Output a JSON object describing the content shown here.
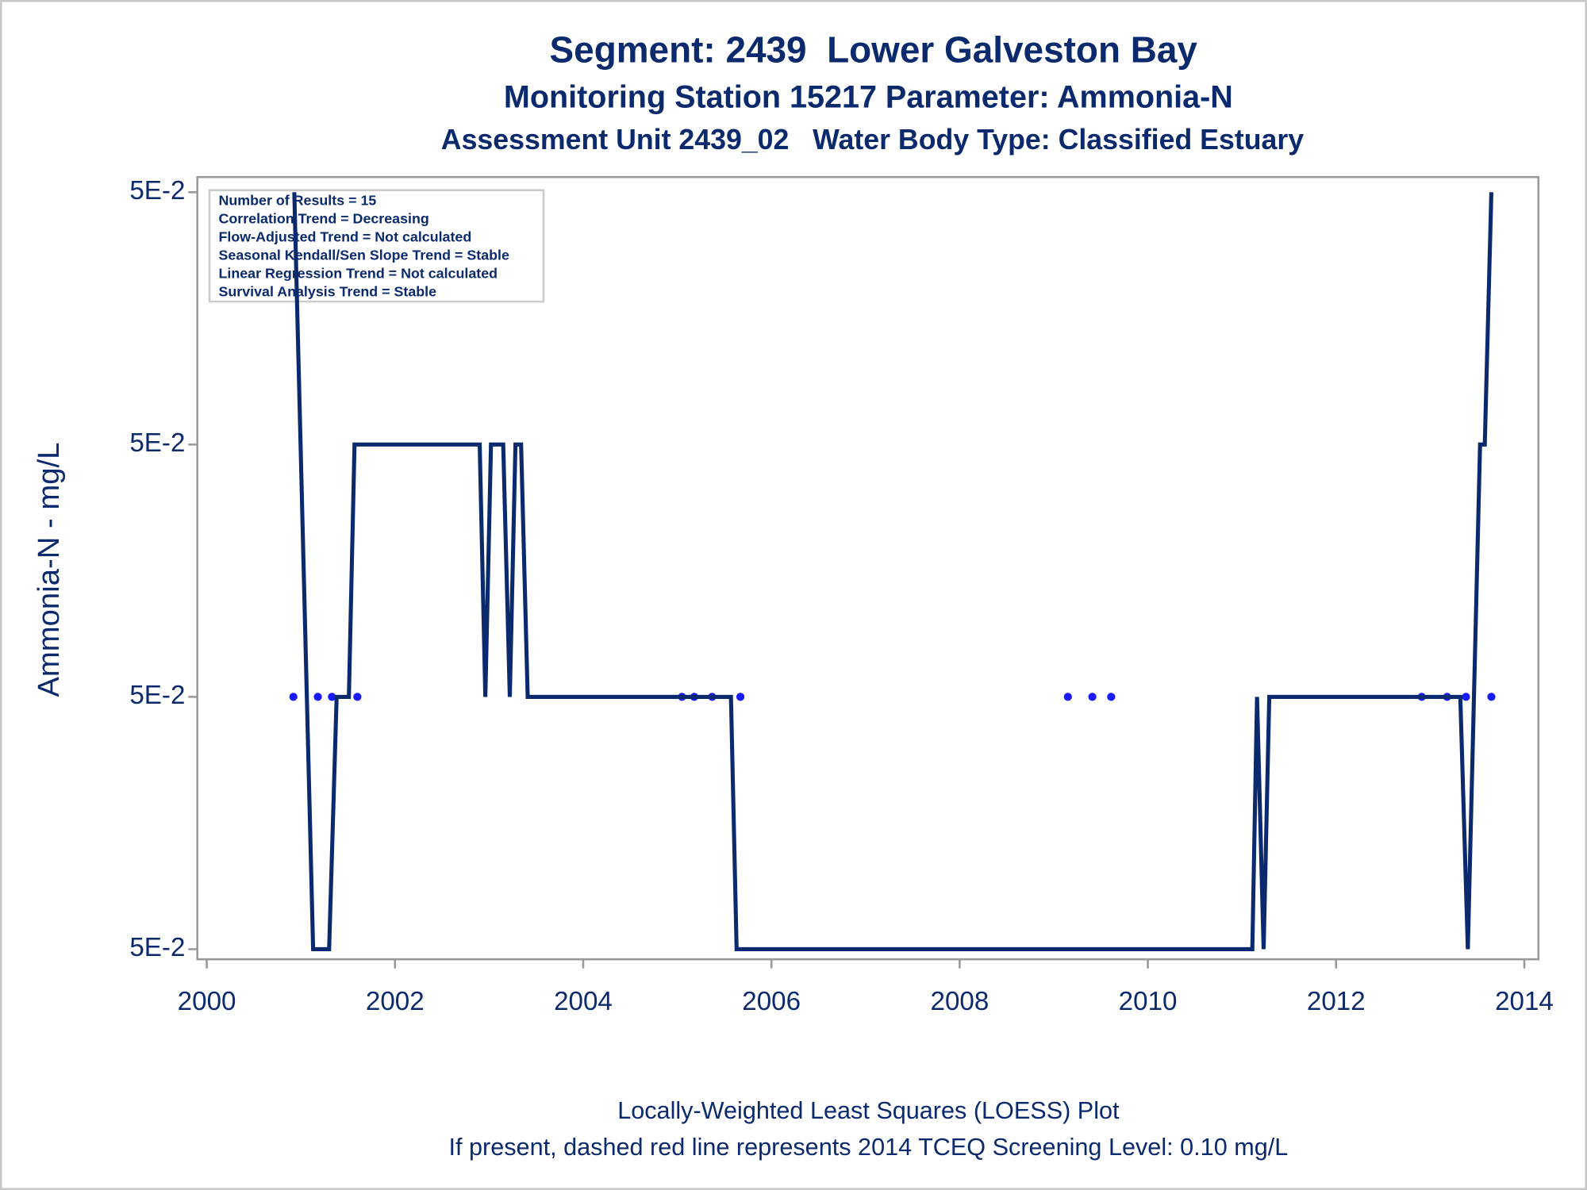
{
  "chart_data": {
    "type": "scatter",
    "title": "Segment: 2439  Lower Galveston Bay",
    "subtitle": [
      "Monitoring Station 15217 Parameter: Ammonia-N",
      "Assessment Unit 2439_02   Water Body Type: Classified Estuary"
    ],
    "ylabel": "Ammonia-N - mg/L",
    "annotations": [
      "Number of Results = 15",
      "Correlation Trend = Decreasing",
      "Flow-Adjusted Trend = Not calculated",
      "Seasonal Kendall/Sen Slope Trend = Stable",
      "Linear Regression Trend = Not calculated",
      "Survival Analysis Trend = Stable"
    ],
    "notes": [
      "Locally-Weighted Least Squares (LOESS) Plot",
      "If present, dashed red line represents 2014 TCEQ Screening Level: 0.10 mg/L"
    ],
    "xlim": [
      1999.9,
      2014.15
    ],
    "xticks": [
      2000,
      2002,
      2004,
      2006,
      2008,
      2010,
      2012,
      2014
    ],
    "ylim": [
      0.0499896,
      0.0500206
    ],
    "yticks": [
      {
        "value": 0.04999,
        "label": "5E-2"
      },
      {
        "value": 0.05,
        "label": "5E-2"
      },
      {
        "value": 0.05001,
        "label": "5E-2"
      },
      {
        "value": 0.05002,
        "label": "5E-2"
      }
    ],
    "series": [
      {
        "type": "scatter",
        "color": "#1a1aff",
        "x": [
          2000.92,
          2001.18,
          2001.33,
          2001.6,
          2005.05,
          2005.18,
          2005.37,
          2005.67,
          2009.15,
          2009.41,
          2009.61,
          2012.91,
          2013.18,
          2013.38,
          2013.65
        ],
        "values": [
          0.05,
          0.05,
          0.05,
          0.05,
          0.05,
          0.05,
          0.05,
          0.05,
          0.05,
          0.05,
          0.05,
          0.05,
          0.05,
          0.05,
          0.05
        ]
      },
      {
        "type": "line",
        "color": "#0b2a6e",
        "x": [
          2000.93,
          2001.13,
          2001.3,
          2001.38,
          2001.51,
          2001.57,
          2002.9,
          2002.96,
          2003.02,
          2003.15,
          2003.22,
          2003.28,
          2003.34,
          2003.41,
          2005.57,
          2005.63,
          2011.11,
          2011.16,
          2011.23,
          2011.29,
          2013.32,
          2013.4,
          2013.53,
          2013.58,
          2013.65
        ],
        "values": [
          0.05002,
          0.04999,
          0.04999,
          0.05,
          0.05,
          0.05001,
          0.05001,
          0.05,
          0.05001,
          0.05001,
          0.05,
          0.05001,
          0.05001,
          0.05,
          0.05,
          0.04999,
          0.04999,
          0.05,
          0.04999,
          0.05,
          0.05,
          0.04999,
          0.05001,
          0.05001,
          0.05002
        ]
      }
    ]
  }
}
